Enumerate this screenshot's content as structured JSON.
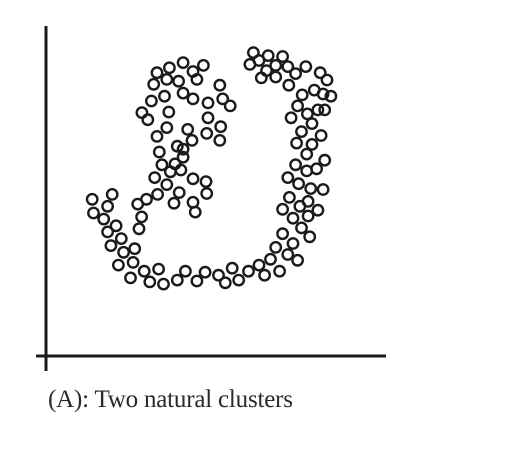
{
  "caption": "(A): Two natural clusters",
  "colors": {
    "ink": "#1a1a1a",
    "background": "#ffffff"
  },
  "chart_data": {
    "type": "scatter",
    "title": "",
    "xlabel": "",
    "ylabel": "",
    "xlim": [
      0,
      100
    ],
    "ylim": [
      0,
      100
    ],
    "grid": false,
    "legend": "none",
    "ticks": false,
    "marker": "open-circle",
    "points": [
      [
        56.1,
        94.9
      ],
      [
        57.8,
        92.3
      ],
      [
        55.0,
        91.0
      ],
      [
        60.6,
        93.9
      ],
      [
        65.0,
        93.6
      ],
      [
        62.9,
        90.7
      ],
      [
        60.1,
        89.0
      ],
      [
        58.5,
        86.6
      ],
      [
        62.9,
        86.9
      ],
      [
        66.6,
        90.3
      ],
      [
        69.0,
        88.0
      ],
      [
        72.1,
        90.3
      ],
      [
        76.5,
        88.3
      ],
      [
        78.6,
        85.9
      ],
      [
        77.4,
        81.3
      ],
      [
        79.8,
        80.6
      ],
      [
        77.9,
        76.1
      ],
      [
        74.7,
        82.6
      ],
      [
        71.0,
        81.0
      ],
      [
        66.9,
        84.2
      ],
      [
        69.6,
        77.4
      ],
      [
        72.6,
        74.8
      ],
      [
        75.8,
        76.1
      ],
      [
        74.0,
        71.6
      ],
      [
        70.8,
        69.0
      ],
      [
        67.6,
        73.5
      ],
      [
        69.3,
        65.2
      ],
      [
        74.0,
        64.8
      ],
      [
        76.8,
        67.7
      ],
      [
        72.4,
        61.6
      ],
      [
        77.9,
        59.6
      ],
      [
        75.4,
        56.8
      ],
      [
        72.4,
        56.1
      ],
      [
        69.0,
        58.1
      ],
      [
        66.6,
        53.9
      ],
      [
        69.9,
        51.9
      ],
      [
        73.6,
        50.3
      ],
      [
        77.4,
        50.0
      ],
      [
        72.8,
        46.1
      ],
      [
        70.3,
        44.5
      ],
      [
        67.1,
        47.4
      ],
      [
        65.0,
        43.5
      ],
      [
        68.2,
        40.6
      ],
      [
        72.8,
        41.3
      ],
      [
        75.8,
        43.2
      ],
      [
        70.8,
        37.4
      ],
      [
        73.3,
        34.5
      ],
      [
        68.2,
        32.3
      ],
      [
        65.0,
        35.5
      ],
      [
        62.9,
        31.0
      ],
      [
        66.6,
        28.7
      ],
      [
        69.6,
        26.8
      ],
      [
        61.3,
        27.1
      ],
      [
        64.1,
        23.2
      ],
      [
        57.8,
        25.2
      ],
      [
        59.5,
        21.9
      ],
      [
        54.6,
        23.2
      ],
      [
        49.6,
        24.2
      ],
      [
        51.6,
        20.3
      ],
      [
        45.4,
        21.9
      ],
      [
        41.3,
        22.9
      ],
      [
        47.5,
        19.4
      ],
      [
        38.8,
        20.0
      ],
      [
        35.3,
        23.2
      ],
      [
        32.8,
        20.3
      ],
      [
        28.6,
        19.0
      ],
      [
        24.4,
        19.7
      ],
      [
        27.1,
        23.9
      ],
      [
        22.7,
        23.2
      ],
      [
        18.5,
        21.0
      ],
      [
        19.3,
        26.1
      ],
      [
        14.8,
        25.2
      ],
      [
        16.4,
        29.4
      ],
      [
        19.8,
        30.6
      ],
      [
        12.5,
        31.6
      ],
      [
        15.7,
        33.9
      ],
      [
        11.5,
        36.1
      ],
      [
        14.1,
        38.1
      ],
      [
        10.3,
        40.3
      ],
      [
        7.2,
        42.3
      ],
      [
        11.5,
        44.5
      ],
      [
        6.8,
        46.8
      ],
      [
        12.9,
        48.4
      ],
      [
        21.1,
        37.1
      ],
      [
        21.9,
        41.0
      ],
      [
        26.8,
        48.4
      ],
      [
        29.6,
        51.6
      ],
      [
        33.4,
        49.0
      ],
      [
        37.6,
        45.8
      ],
      [
        41.8,
        48.7
      ],
      [
        37.6,
        53.5
      ],
      [
        41.6,
        52.6
      ],
      [
        33.9,
        56.4
      ],
      [
        30.7,
        55.8
      ],
      [
        28.1,
        58.1
      ],
      [
        25.9,
        53.9
      ],
      [
        27.3,
        62.3
      ],
      [
        34.6,
        60.6
      ],
      [
        26.6,
        67.4
      ],
      [
        32.8,
        64.2
      ],
      [
        29.6,
        70.3
      ],
      [
        36.0,
        69.7
      ],
      [
        30.2,
        75.4
      ],
      [
        23.8,
        72.9
      ],
      [
        24.9,
        79.0
      ],
      [
        22.0,
        75.2
      ],
      [
        28.9,
        80.6
      ],
      [
        25.6,
        84.5
      ],
      [
        29.6,
        86.1
      ],
      [
        33.2,
        85.5
      ],
      [
        26.6,
        88.3
      ],
      [
        30.4,
        89.9
      ],
      [
        34.6,
        91.6
      ],
      [
        37.6,
        88.7
      ],
      [
        40.8,
        90.7
      ],
      [
        38.8,
        86.1
      ],
      [
        34.6,
        81.6
      ],
      [
        37.6,
        79.7
      ],
      [
        42.2,
        78.4
      ],
      [
        46.7,
        79.7
      ],
      [
        45.8,
        84.2
      ],
      [
        49.0,
        77.4
      ],
      [
        42.2,
        73.5
      ],
      [
        46.1,
        70.6
      ],
      [
        45.8,
        66.1
      ],
      [
        41.8,
        68.4
      ],
      [
        37.3,
        66.1
      ],
      [
        34.6,
        63.2
      ],
      [
        32.1,
        58.4
      ],
      [
        38.3,
        42.6
      ],
      [
        31.8,
        45.5
      ],
      [
        20.7,
        45.2
      ],
      [
        23.4,
        46.8
      ]
    ]
  }
}
